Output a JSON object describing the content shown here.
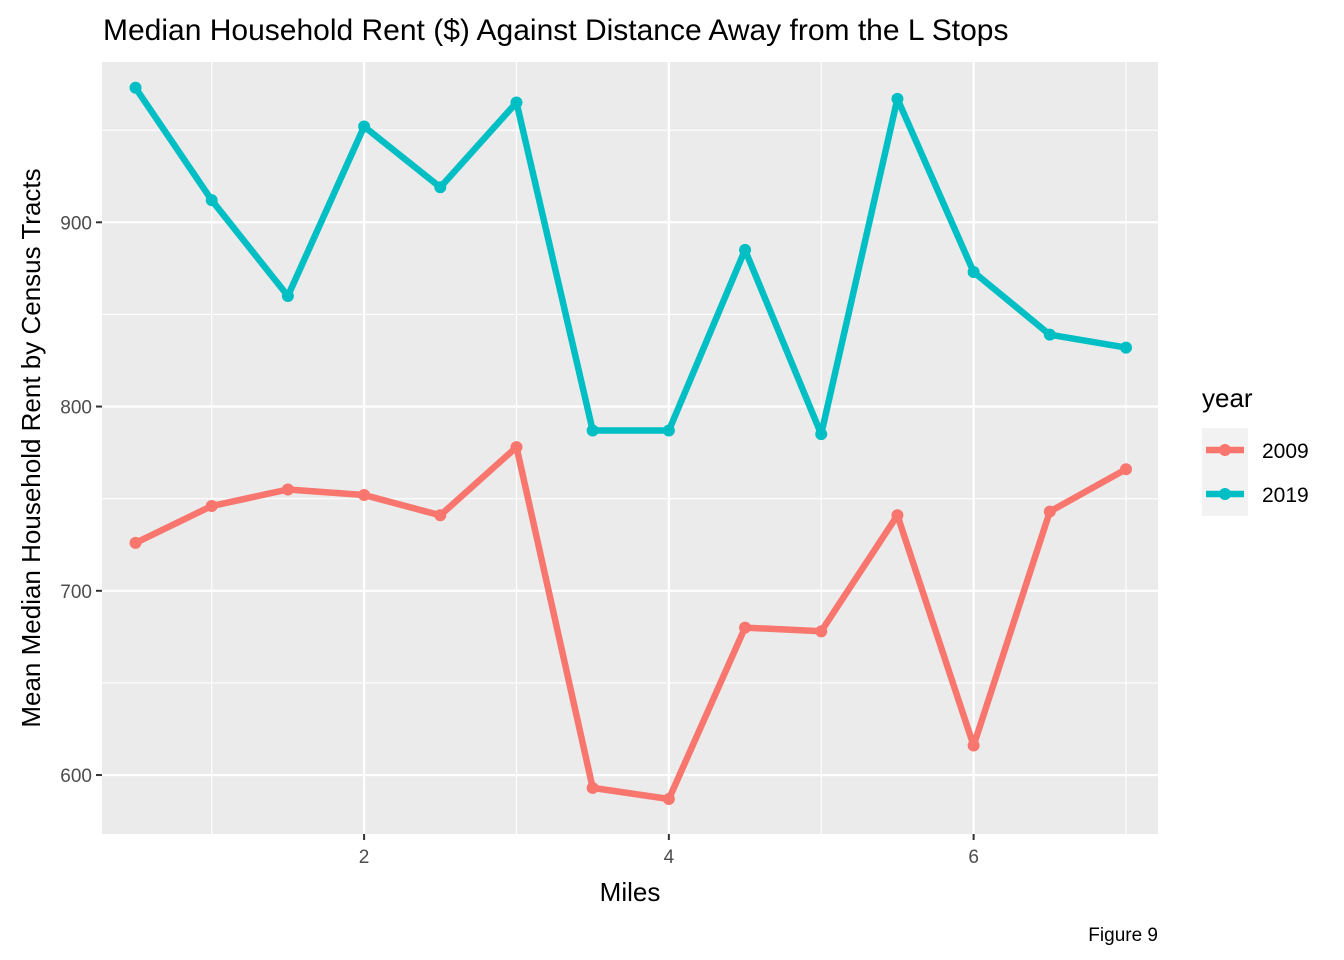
{
  "chart_data": {
    "type": "line",
    "title": "Median Household Rent ($) Against Distance Away from the L Stops",
    "xlabel": "Miles",
    "ylabel": "Mean Median Household Rent by Census Tracts",
    "caption": "Figure 9",
    "xlim": [
      0.28,
      7.21
    ],
    "ylim": [
      568,
      987
    ],
    "x_ticks": [
      2,
      4,
      6
    ],
    "y_ticks": [
      600,
      700,
      800,
      900
    ],
    "grid": true,
    "legend": {
      "title": "year",
      "position": "right"
    },
    "x": [
      0.5,
      1.0,
      1.5,
      2.0,
      2.5,
      3.0,
      3.5,
      4.0,
      4.5,
      5.0,
      5.5,
      6.0,
      6.5,
      7.0
    ],
    "series": [
      {
        "name": "2009",
        "color": "#f8766d",
        "values": [
          726,
          746,
          755,
          752,
          741,
          778,
          593,
          587,
          680,
          678,
          741,
          616,
          743,
          766
        ]
      },
      {
        "name": "2019",
        "color": "#00bfc4",
        "values": [
          973,
          912,
          860,
          952,
          919,
          965,
          787,
          787,
          885,
          785,
          967,
          873,
          839,
          832
        ]
      }
    ]
  }
}
